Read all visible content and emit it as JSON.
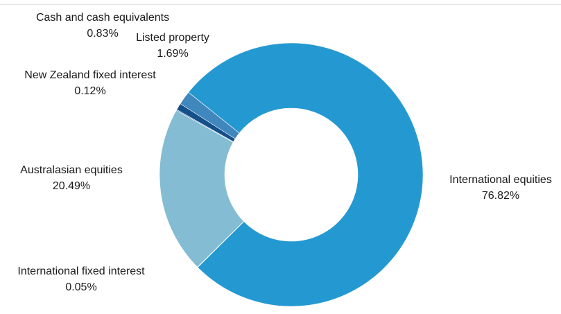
{
  "chart_data": {
    "type": "pie",
    "variant": "donut",
    "title": "",
    "categories": [
      "International equities",
      "International fixed interest",
      "Australasian equities",
      "New Zealand fixed interest",
      "Cash and cash equivalents",
      "Listed property"
    ],
    "values": [
      76.82,
      0.05,
      20.49,
      0.12,
      0.83,
      1.69
    ],
    "value_labels": [
      "76.82%",
      "0.05%",
      "20.49%",
      "0.12%",
      "0.83%",
      "1.69%"
    ],
    "colors": [
      "#2499d1",
      "#2a8fc7",
      "#83bcd3",
      "#2f6e9f",
      "#144f8a",
      "#3f87bd"
    ],
    "legend": "none"
  }
}
